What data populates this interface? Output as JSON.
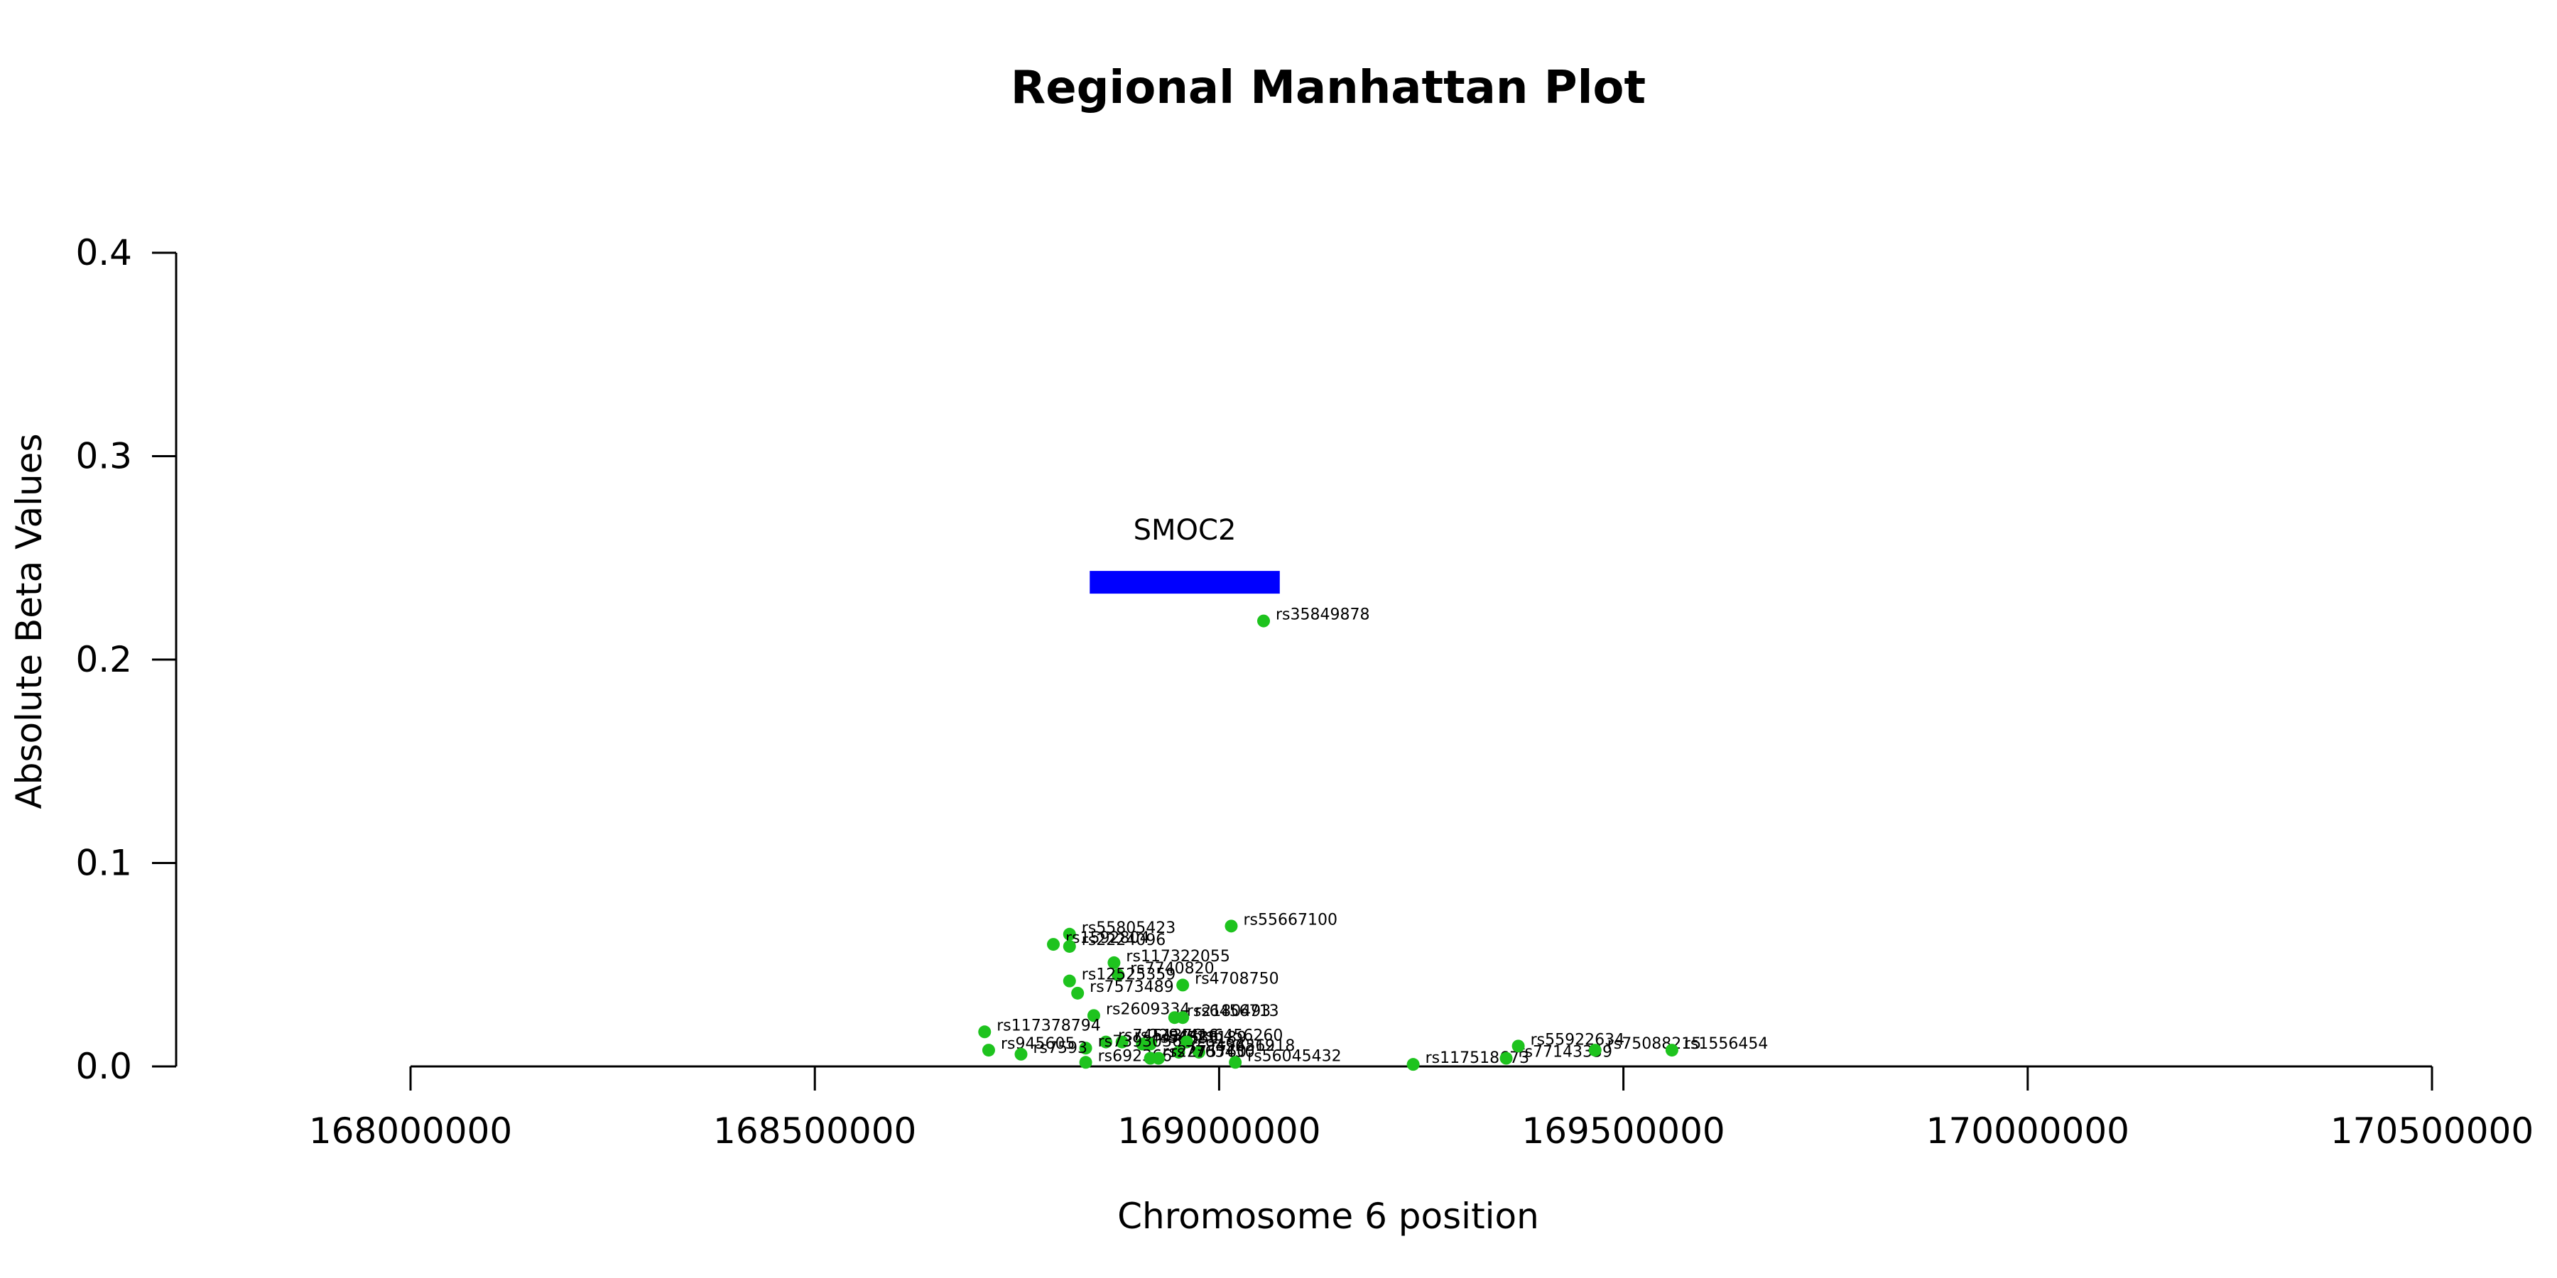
{
  "chart_data": {
    "type": "scatter",
    "title": "Regional Manhattan Plot",
    "xlabel": "Chromosome 6 position",
    "ylabel": "Absolute Beta Values",
    "xlim": [
      167700000,
      170600000
    ],
    "ylim": [
      0,
      0.4
    ],
    "x_ticks": [
      168000000,
      168500000,
      169000000,
      169500000,
      170000000,
      170500000
    ],
    "x_tick_labels": [
      "168000000",
      "168500000",
      "169000000",
      "169500000",
      "170000000",
      "170500000"
    ],
    "y_ticks": [
      0,
      0.1,
      0.2,
      0.3,
      0.4
    ],
    "y_tick_labels": [
      "0.0",
      "0.1",
      "0.2",
      "0.3",
      "0.4"
    ],
    "point_color": "#1ec31e",
    "gene": {
      "name": "SMOC2",
      "start": 168840000,
      "end": 169075000,
      "y": 0.238,
      "color": "#0000ff"
    },
    "points": [
      {
        "id": "rs35849878",
        "x": 169055000,
        "y": 0.219
      },
      {
        "id": "rs55667100",
        "x": 169015000,
        "y": 0.069
      },
      {
        "id": "rs55805423",
        "x": 168815000,
        "y": 0.065
      },
      {
        "id": "rs1592804",
        "x": 168795000,
        "y": 0.06
      },
      {
        "id": "rs2224096",
        "x": 168815000,
        "y": 0.059
      },
      {
        "id": "rs117322055",
        "x": 168870000,
        "y": 0.051
      },
      {
        "id": "rs7740820",
        "x": 168875000,
        "y": 0.045
      },
      {
        "id": "rs12525359",
        "x": 168815000,
        "y": 0.042
      },
      {
        "id": "rs4708750",
        "x": 168955000,
        "y": 0.04
      },
      {
        "id": "rs7573489",
        "x": 168825000,
        "y": 0.036
      },
      {
        "id": "rs2609334",
        "x": 168845000,
        "y": 0.025
      },
      {
        "id": "rs2180493",
        "x": 168945000,
        "y": 0.024
      },
      {
        "id": "rs6456713",
        "x": 168955000,
        "y": 0.024
      },
      {
        "id": "rs117378794",
        "x": 168710000,
        "y": 0.017
      },
      {
        "id": "rs7451376",
        "x": 168860000,
        "y": 0.012
      },
      {
        "id": "rs2294416",
        "x": 168880000,
        "y": 0.012
      },
      {
        "id": "rs56633",
        "x": 168905000,
        "y": 0.011
      },
      {
        "id": "rs4521189",
        "x": 168915000,
        "y": 0.011
      },
      {
        "id": "rs6456260",
        "x": 168960000,
        "y": 0.012
      },
      {
        "id": "rs945605",
        "x": 168715000,
        "y": 0.008
      },
      {
        "id": "rs7393036",
        "x": 168835000,
        "y": 0.009
      },
      {
        "id": "rs7593",
        "x": 168755000,
        "y": 0.006
      },
      {
        "id": "rs9456218",
        "x": 168975000,
        "y": 0.007
      },
      {
        "id": "rs9456219",
        "x": 168950000,
        "y": 0.007
      },
      {
        "id": "rs692366",
        "x": 168835000,
        "y": 0.002
      },
      {
        "id": "rs2275760",
        "x": 168915000,
        "y": 0.004
      },
      {
        "id": "rs7765450",
        "x": 168925000,
        "y": 0.004
      },
      {
        "id": "rs56045432",
        "x": 169020000,
        "y": 0.002
      },
      {
        "id": "rs117518673",
        "x": 169240000,
        "y": 0.001
      },
      {
        "id": "rs77143359",
        "x": 169355000,
        "y": 0.004
      },
      {
        "id": "rs55922634",
        "x": 169370000,
        "y": 0.01
      },
      {
        "id": "rs75088215",
        "x": 169465000,
        "y": 0.008
      },
      {
        "id": "rs1556454",
        "x": 169560000,
        "y": 0.008
      }
    ]
  }
}
